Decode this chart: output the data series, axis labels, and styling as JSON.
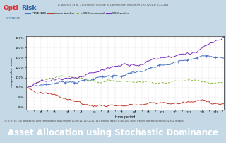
{
  "title": "B. Anesco et al. / European Journal of Operational Research 228 (2013) 273-281",
  "xlabel": "time period",
  "ylabel": "compounded return",
  "caption": "Fig. 5. FTSE 100 dataset: ex-post compounded daily returns 01/06/11- 22/12/11 (147 working days): FTSE 100, index tracker, portfolios chosen by SSD models.",
  "bottom_title": "Asset Allocation using Stochastic Dominance",
  "bg_color": "#c5d8e5",
  "chart_bg": "#ffffff",
  "ylim": [
    78,
    152
  ],
  "n_points": 147,
  "series": {
    "ftse100": {
      "label": "FTSE 100",
      "color": "#4472c4",
      "linewidth": 0.7
    },
    "index_tracker": {
      "label": "index tracker",
      "color": "#c0392b",
      "linewidth": 0.7
    },
    "ssd_unscaled": {
      "label": "SSD unscaled",
      "color": "#7db728",
      "linewidth": 0.7
    },
    "ssd_scaled": {
      "label": "SSD scaled",
      "color": "#7b2fbe",
      "linewidth": 0.7
    }
  }
}
